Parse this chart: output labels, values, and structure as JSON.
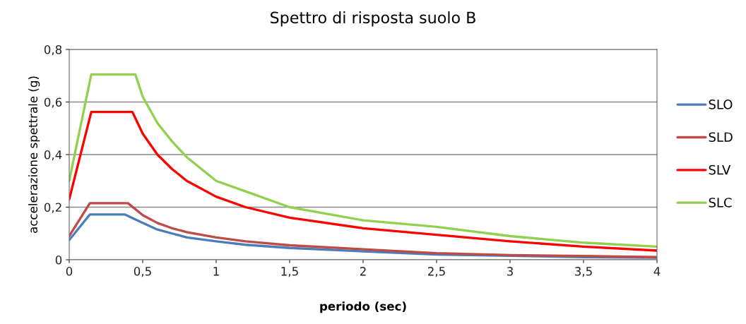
{
  "chart_data": {
    "type": "line",
    "title": "Spettro di risposta suolo B",
    "xlabel": "periodo (sec)",
    "ylabel": "accelerazione spettrale (g)",
    "xlim": [
      0,
      4
    ],
    "ylim": [
      0,
      0.8
    ],
    "xticks": [
      0,
      {
        "value": 0.5,
        "label": "0,5"
      },
      1,
      {
        "value": 1.5,
        "label": "1,5"
      },
      2,
      {
        "value": 2.5,
        "label": "2,5"
      },
      3,
      {
        "value": 3.5,
        "label": "3,5"
      },
      4
    ],
    "yticks": [
      0,
      {
        "value": 0.2,
        "label": "0,2"
      },
      {
        "value": 0.4,
        "label": "0,4"
      },
      {
        "value": 0.6,
        "label": "0,6"
      },
      {
        "value": 0.8,
        "label": "0,8"
      }
    ],
    "grid": "y",
    "legend": "right",
    "marker": "none",
    "line_style": "solid",
    "series": [
      {
        "name": "SLO",
        "color": "#4a7ebb",
        "x": [
          0,
          0.14,
          0.38,
          0.5,
          0.6,
          0.7,
          0.8,
          1.0,
          1.2,
          1.5,
          2.0,
          2.5,
          3.0,
          3.5,
          4.0
        ],
        "values": [
          0.075,
          0.172,
          0.172,
          0.14,
          0.115,
          0.1,
          0.085,
          0.07,
          0.057,
          0.045,
          0.032,
          0.02,
          0.015,
          0.01,
          0.008
        ]
      },
      {
        "name": "SLD",
        "color": "#be4b48",
        "x": [
          0,
          0.14,
          0.4,
          0.5,
          0.6,
          0.7,
          0.8,
          1.0,
          1.2,
          1.5,
          2.0,
          2.5,
          3.0,
          3.5,
          4.0
        ],
        "values": [
          0.09,
          0.215,
          0.215,
          0.17,
          0.14,
          0.12,
          0.105,
          0.085,
          0.07,
          0.055,
          0.04,
          0.025,
          0.018,
          0.014,
          0.01
        ]
      },
      {
        "name": "SLV",
        "color": "#ff0000",
        "x": [
          0,
          0.15,
          0.43,
          0.5,
          0.6,
          0.7,
          0.8,
          1.0,
          1.2,
          1.5,
          2.0,
          2.5,
          3.0,
          3.5,
          4.0
        ],
        "values": [
          0.23,
          0.562,
          0.562,
          0.48,
          0.4,
          0.345,
          0.3,
          0.24,
          0.2,
          0.16,
          0.12,
          0.095,
          0.07,
          0.05,
          0.035
        ]
      },
      {
        "name": "SLC",
        "color": "#92d050",
        "x": [
          0,
          0.15,
          0.45,
          0.5,
          0.6,
          0.7,
          0.8,
          1.0,
          1.2,
          1.5,
          2.0,
          2.5,
          3.0,
          3.5,
          4.0
        ],
        "values": [
          0.3,
          0.705,
          0.705,
          0.62,
          0.52,
          0.45,
          0.39,
          0.3,
          0.26,
          0.2,
          0.15,
          0.125,
          0.09,
          0.065,
          0.05
        ]
      }
    ]
  }
}
